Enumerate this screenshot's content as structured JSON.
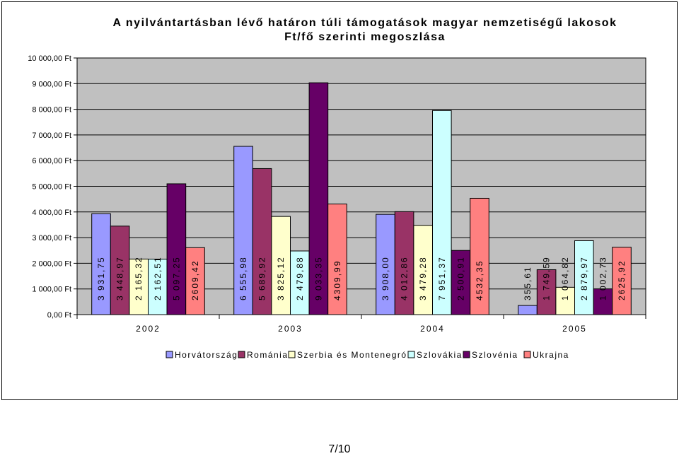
{
  "page": {
    "number": "7/10"
  },
  "colors": {
    "plot_background": "#c0c0c0",
    "outline": "#000000"
  },
  "chart_data": {
    "type": "bar",
    "title_lines": [
      "A nyilvántartásban lévő határon túli támogatások magyar nemzetiségű lakosok",
      "Ft/fő szerinti megoszlása"
    ],
    "categories": [
      "2002",
      "2003",
      "2004",
      "2005"
    ],
    "ylim": [
      0,
      10000
    ],
    "ytick_values": [
      0,
      1000,
      2000,
      3000,
      4000,
      5000,
      6000,
      7000,
      8000,
      9000,
      10000
    ],
    "ytick_labels": [
      "0,00 Ft",
      "1 000,00 Ft",
      "2 000,00 Ft",
      "3 000,00 Ft",
      "4 000,00 Ft",
      "5 000,00 Ft",
      "6 000,00 Ft",
      "7 000,00 Ft",
      "8 000,00 Ft",
      "9 000,00 Ft",
      "10 000,00 Ft"
    ],
    "grid": true,
    "legend_position": "bottom",
    "series": [
      {
        "name": "Horvátország",
        "color": "#9999ff",
        "values": [
          3931.75,
          6555.98,
          3908.0,
          355.61
        ],
        "labels": [
          "3 931,75",
          "6 555,98",
          "3 908,00",
          "355,61"
        ]
      },
      {
        "name": "Románia",
        "color": "#993366",
        "values": [
          3448.97,
          5689.92,
          4012.86,
          1749.59
        ],
        "labels": [
          "3 448,97",
          "5 689,92",
          "4 012,86",
          "1 749,59"
        ]
      },
      {
        "name": "Szerbia és Montenegró",
        "color": "#ffffcc",
        "values": [
          2165.32,
          3825.12,
          3479.28,
          1064.82
        ],
        "labels": [
          "2 165,32",
          "3 825,12",
          "3 479,28",
          "1 064,82"
        ]
      },
      {
        "name": "Szlovákia",
        "color": "#ccffff",
        "values": [
          2162.51,
          2479.88,
          7951.37,
          2879.97
        ],
        "labels": [
          "2 162,51",
          "2 479,88",
          "7 951,37",
          "2 879,97"
        ]
      },
      {
        "name": "Szlovénia",
        "color": "#660066",
        "values": [
          5097.25,
          9033.35,
          2500.91,
          1002.73
        ],
        "labels": [
          "5 097,25",
          "9 033,35",
          "2 500,91",
          "1 002,73"
        ]
      },
      {
        "name": "Ukrajna",
        "color": "#ff8080",
        "values": [
          2609.42,
          4309.99,
          4532.35,
          2625.92
        ],
        "labels": [
          "2609,42",
          "4309,99",
          "4532,35",
          "2625,92"
        ]
      }
    ]
  }
}
